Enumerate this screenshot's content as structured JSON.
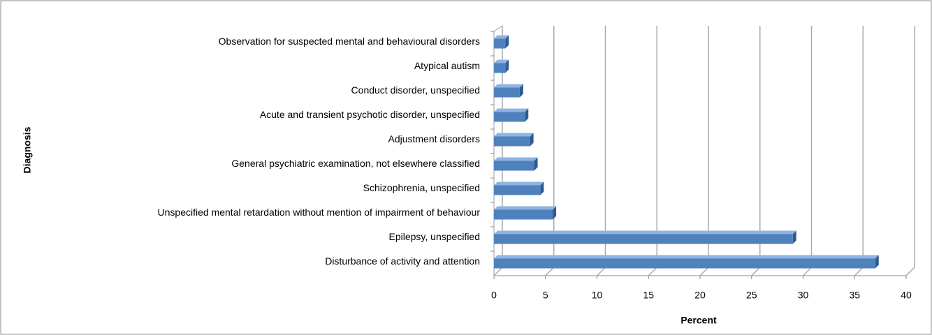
{
  "chart_data": {
    "type": "hbar",
    "x_label": "Percent",
    "y_label": "Diagnosis",
    "categories": [
      "Observation for suspected mental and behavioural disorders",
      "Atypical autism",
      "Conduct disorder, unspecified",
      "Acute and transient psychotic disorder, unspecified",
      "Adjustment disorders",
      "General psychiatric examination, not elsewhere classified",
      "Schizophrenia, unspecified",
      "Unspecified mental retardation without mention of impairment of behaviour",
      "Epilepsy, unspecified",
      "Disturbance of activity and attention"
    ],
    "values": [
      1.1,
      1.1,
      2.5,
      3,
      3.5,
      3.9,
      4.5,
      5.7,
      29,
      37
    ],
    "color": "#4f81bd",
    "xlim": [
      0,
      40
    ],
    "xticks": [
      0,
      5,
      10,
      15,
      20,
      25,
      30,
      35,
      40
    ],
    "grid": true
  }
}
